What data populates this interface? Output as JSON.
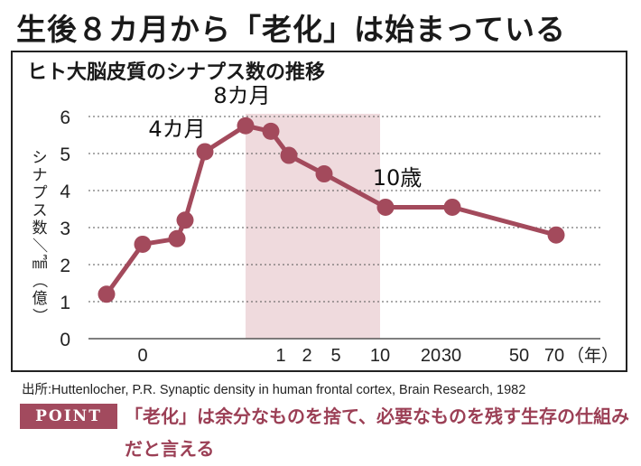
{
  "headline": "生後８カ月から「老化」は始まっている",
  "chart_data": {
    "type": "line",
    "title": "ヒト大脳皮質のシナプス数の推移",
    "ylabel": "シナプス数／㎣（億）",
    "xlabel": "（年）",
    "ylim": [
      0,
      6
    ],
    "y_ticks": [
      "0",
      "1",
      "2",
      "3",
      "4",
      "5",
      "6"
    ],
    "x_ticks": [
      "0",
      "1",
      "2",
      "5",
      "10",
      "20",
      "30",
      "50",
      "70"
    ],
    "x_axis_note": "x axis: 0 = birth; before 0 are prenatal stages; 1 month to 1 year and 1 to 70 years use compressed spacing",
    "series": [
      {
        "values": [
          {
            "x": "prenatal",
            "y": 1.2
          },
          {
            "x": "birth",
            "y": 2.55
          },
          {
            "x": "2 months",
            "y": 2.7
          },
          {
            "x": "3 months",
            "y": 3.2
          },
          {
            "x": "4 months",
            "y": 5.05
          },
          {
            "x": "8 months",
            "y": 5.75
          },
          {
            "x": "11 months",
            "y": 5.6
          },
          {
            "x": "1.5 years",
            "y": 4.95
          },
          {
            "x": "4 years",
            "y": 4.45
          },
          {
            "x": "10 years",
            "y": 3.55
          },
          {
            "x": "30 years",
            "y": 3.55
          },
          {
            "x": "70 years",
            "y": 2.8
          }
        ]
      }
    ],
    "annotations": [
      {
        "text": "4カ月",
        "point_index": 4
      },
      {
        "text": "8カ月",
        "point_index": 5
      },
      {
        "text": "10歳",
        "point_index": 9
      }
    ],
    "highlight_band": {
      "from": "8 months",
      "to": "10 years"
    },
    "grid": "horizontal dotted",
    "colors": {
      "line": "#a34a5c",
      "band": "#efdadd"
    }
  },
  "source": "出所:Huttenlocher, P.R. Synaptic density in human frontal cortex, Brain Research, 1982",
  "point": {
    "badge": "POINT",
    "text": "「老化」は余分なものを捨て、必要なものを残す生存の仕組みだと言える"
  }
}
